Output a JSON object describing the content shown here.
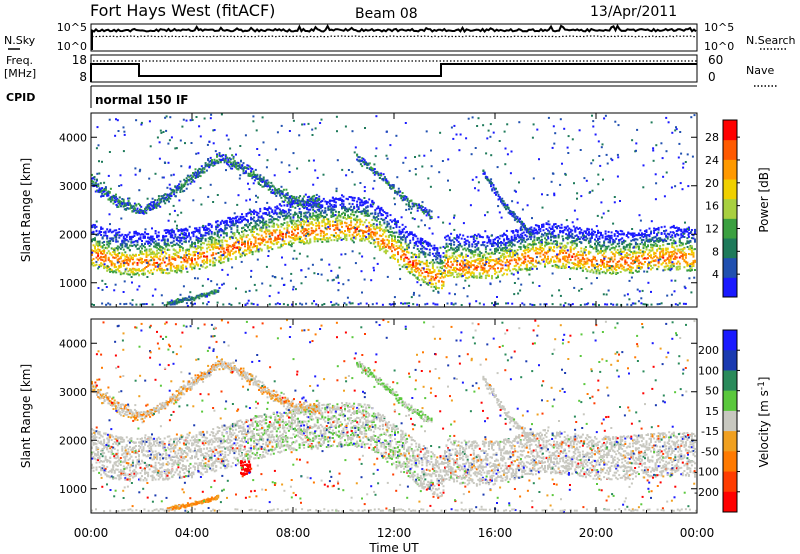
{
  "header": {
    "title": "Fort Hays West (fitACF)",
    "beam": "Beam 08",
    "date": "13/Apr/2011"
  },
  "nsky_panel": {
    "left_label": "N.Sky",
    "right_label": "N.Search",
    "left_ticks": [
      "10^5",
      "10^0"
    ],
    "right_ticks": [
      "10^5",
      "10^0"
    ]
  },
  "freq_panel": {
    "left_label_1": "Freq.",
    "left_label_2": "[MHz]",
    "left_ticks": [
      "18",
      "8"
    ],
    "right_label": "Nave",
    "right_ticks": [
      "60",
      "0"
    ]
  },
  "cpid_panel": {
    "label": "CPID",
    "value": "normal 150 IF"
  },
  "colors": {
    "power_scale": [
      "#1a1aff",
      "#2050b0",
      "#1e7a5a",
      "#3ba040",
      "#a8d040",
      "#f0d000",
      "#ff9900",
      "#ff5a00",
      "#ff0000"
    ],
    "velocity_scale": [
      "#1a1aff",
      "#1a3ab0",
      "#2a8a5a",
      "#5ac83c",
      "#c8c8c0",
      "#f0a020",
      "#ff7a00",
      "#ff3c00",
      "#ff0000"
    ]
  },
  "chart_data": [
    {
      "type": "heatmap",
      "name": "power",
      "ylabel": "Slant Range [km]",
      "yticks": [
        "1000",
        "2000",
        "3000",
        "4000"
      ],
      "yrange": [
        500,
        4500
      ],
      "colorbar_label": "Power [dB]",
      "colorbar_ticks": [
        "4",
        "8",
        "12",
        "16",
        "20",
        "24",
        "28"
      ],
      "colorbar_range": [
        0,
        31
      ]
    },
    {
      "type": "heatmap",
      "name": "velocity",
      "ylabel": "Slant Range [km]",
      "yticks": [
        "1000",
        "2000",
        "3000",
        "4000"
      ],
      "yrange": [
        500,
        4500
      ],
      "colorbar_label": "Velocity [m s",
      "colorbar_label_sup": "-1",
      "colorbar_label_end": "]",
      "colorbar_ticks": [
        "200",
        "100",
        "50",
        "15",
        "-15",
        "-50",
        "-100",
        "-200"
      ]
    }
  ],
  "time_axis": {
    "xlabel": "Time UT",
    "ticks": [
      "00:00",
      "04:00",
      "08:00",
      "12:00",
      "16:00",
      "20:00",
      "00:00"
    ],
    "range_hours": [
      0,
      24
    ]
  },
  "scatter_bands": {
    "main_band": [
      [
        0,
        1600
      ],
      [
        1,
        1450
      ],
      [
        2,
        1420
      ],
      [
        3,
        1460
      ],
      [
        4,
        1500
      ],
      [
        5,
        1650
      ],
      [
        6,
        1800
      ],
      [
        7,
        1950
      ],
      [
        8,
        2050
      ],
      [
        9,
        2100
      ],
      [
        10,
        2150
      ],
      [
        11,
        2100
      ],
      [
        12,
        1700
      ],
      [
        13,
        1300
      ],
      [
        13.9,
        1050
      ],
      [
        14,
        1400
      ],
      [
        15,
        1350
      ],
      [
        16,
        1350
      ],
      [
        17,
        1500
      ],
      [
        18,
        1600
      ],
      [
        19,
        1550
      ],
      [
        20,
        1450
      ],
      [
        21,
        1450
      ],
      [
        22,
        1500
      ],
      [
        23,
        1550
      ],
      [
        24,
        1500
      ]
    ],
    "upper_band": [
      [
        0,
        3100
      ],
      [
        1,
        2700
      ],
      [
        2,
        2500
      ],
      [
        3,
        2800
      ],
      [
        4,
        3200
      ],
      [
        5,
        3600
      ],
      [
        6,
        3400
      ],
      [
        7,
        3000
      ],
      [
        8,
        2700
      ],
      [
        9,
        2700
      ]
    ],
    "descending_band": [
      [
        10.5,
        3600
      ],
      [
        11.5,
        3200
      ],
      [
        12.5,
        2700
      ],
      [
        13.5,
        2400
      ]
    ],
    "low_patch": [
      [
        3,
        600
      ],
      [
        4,
        700
      ],
      [
        5,
        850
      ]
    ],
    "late_band": [
      [
        15.5,
        3300
      ],
      [
        16.5,
        2500
      ],
      [
        17.5,
        2000
      ]
    ],
    "velocity_red_patch": [
      [
        5.9,
        1400
      ],
      [
        6.3,
        1500
      ]
    ]
  }
}
